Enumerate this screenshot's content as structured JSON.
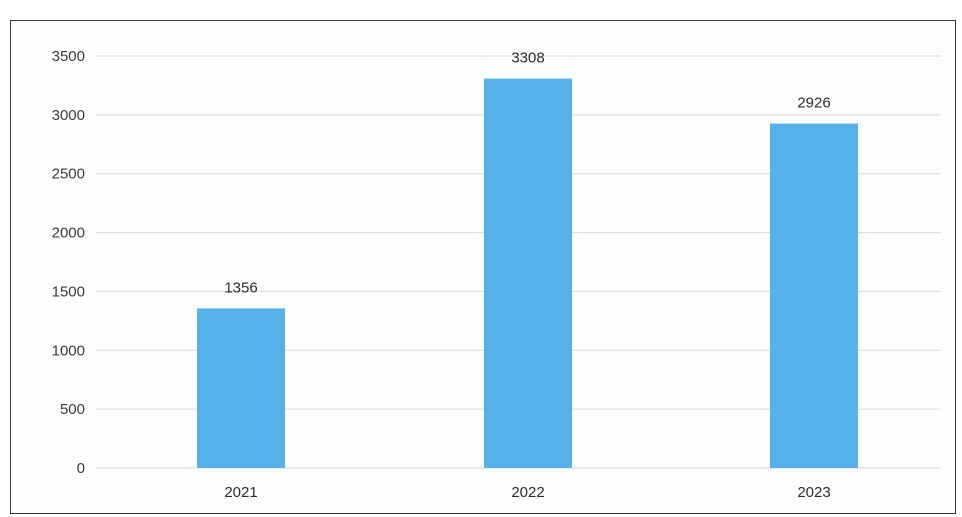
{
  "chart_data": {
    "type": "bar",
    "categories": [
      "2021",
      "2022",
      "2023"
    ],
    "values": [
      1356,
      3308,
      2926
    ],
    "data_labels": [
      "1356",
      "3308",
      "2926"
    ],
    "title": "",
    "xlabel": "",
    "ylabel": "",
    "ylim": [
      0,
      3500
    ],
    "yticks": [
      "0",
      "500",
      "1000",
      "1500",
      "2000",
      "2500",
      "3000",
      "3500"
    ],
    "grid": true,
    "legend": "none",
    "bar_color": "#56b0ea"
  }
}
